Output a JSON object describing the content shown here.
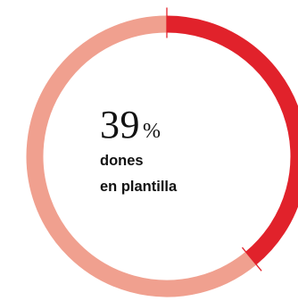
{
  "chart_data": {
    "type": "pie",
    "style": "donut",
    "slices": [
      {
        "label": "dones en plantilla",
        "value": 39,
        "color": "#e1222b"
      },
      {
        "label": "",
        "value": 61,
        "color": "#f0a08f"
      }
    ],
    "center_value": "39",
    "center_unit": "%",
    "center_label_lines": [
      "dones",
      "en plantilla"
    ],
    "marker_color": "#e1222b"
  }
}
